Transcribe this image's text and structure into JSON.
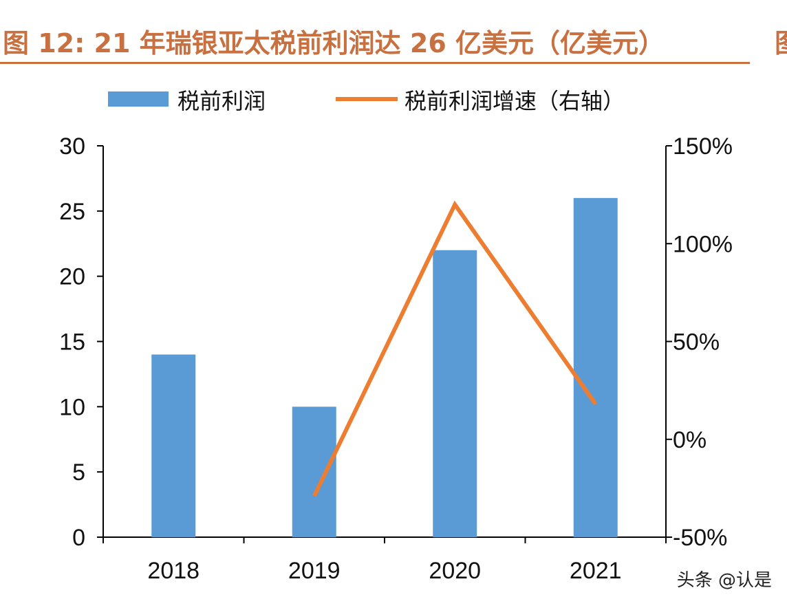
{
  "header": {
    "title": "图 12: 21 年瑞银亚太税前利润达 26 亿美元（亿美元）",
    "title_clipped_char": "图"
  },
  "chart_data": {
    "type": "bar",
    "title": "图 12: 21 年瑞银亚太税前利润达 26 亿美元（亿美元）",
    "categories": [
      "2018",
      "2019",
      "2020",
      "2021"
    ],
    "series": [
      {
        "name": "税前利润",
        "type": "bar",
        "axis": "left",
        "color": "#5b9bd5",
        "values": [
          14,
          10,
          22,
          26
        ]
      },
      {
        "name": "税前利润增速（右轴）",
        "type": "line",
        "axis": "right",
        "color": "#ed7d31",
        "values": [
          null,
          -29,
          120,
          18
        ]
      }
    ],
    "left_axis": {
      "ylim": [
        0,
        30
      ],
      "ticks": [
        0,
        5,
        10,
        15,
        20,
        25,
        30
      ],
      "tick_labels": [
        "0",
        "5",
        "10",
        "15",
        "20",
        "25",
        "30"
      ]
    },
    "right_axis": {
      "ylim": [
        -50,
        150
      ],
      "ticks": [
        -50,
        0,
        50,
        100,
        150
      ],
      "tick_labels": [
        "-50%",
        "0%",
        "50%",
        "100%",
        "150%"
      ]
    },
    "legend_position": "top",
    "grid": false
  },
  "watermark": {
    "text": "头条 @认是"
  }
}
